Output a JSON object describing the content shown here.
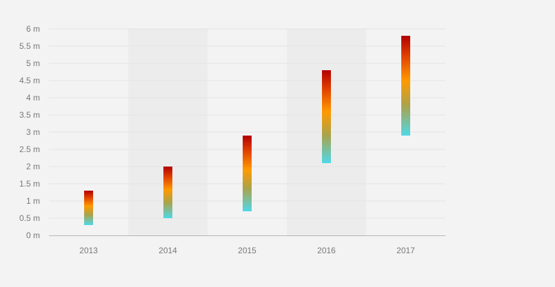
{
  "chart_data": {
    "type": "bar",
    "subtype": "floating-range",
    "categories": [
      "2013",
      "2014",
      "2015",
      "2016",
      "2017"
    ],
    "series": [
      {
        "low": [
          0.3,
          0.5,
          0.7,
          2.1,
          2.9
        ],
        "high": [
          1.3,
          2.0,
          2.9,
          4.8,
          5.8
        ]
      }
    ],
    "title": "",
    "xlabel": "",
    "ylabel": "",
    "ylim": [
      0,
      6
    ],
    "yticks": [
      0,
      0.5,
      1,
      1.5,
      2,
      2.5,
      3,
      3.5,
      4,
      4.5,
      5,
      5.5,
      6
    ],
    "ytick_labels": [
      "0 m",
      "0.5 m",
      "1 m",
      "1.5 m",
      "2 m",
      "2.5 m",
      "3 m",
      "3.5 m",
      "4 m",
      "4.5 m",
      "5 m",
      "5.5 m",
      "6 m"
    ],
    "grid": true,
    "alternating_band_color": "#ececec",
    "bar_gradient": [
      "#4fd8e8",
      "#a9a34b",
      "#ff9a00",
      "#e04000",
      "#b30000"
    ],
    "legend": "none"
  }
}
